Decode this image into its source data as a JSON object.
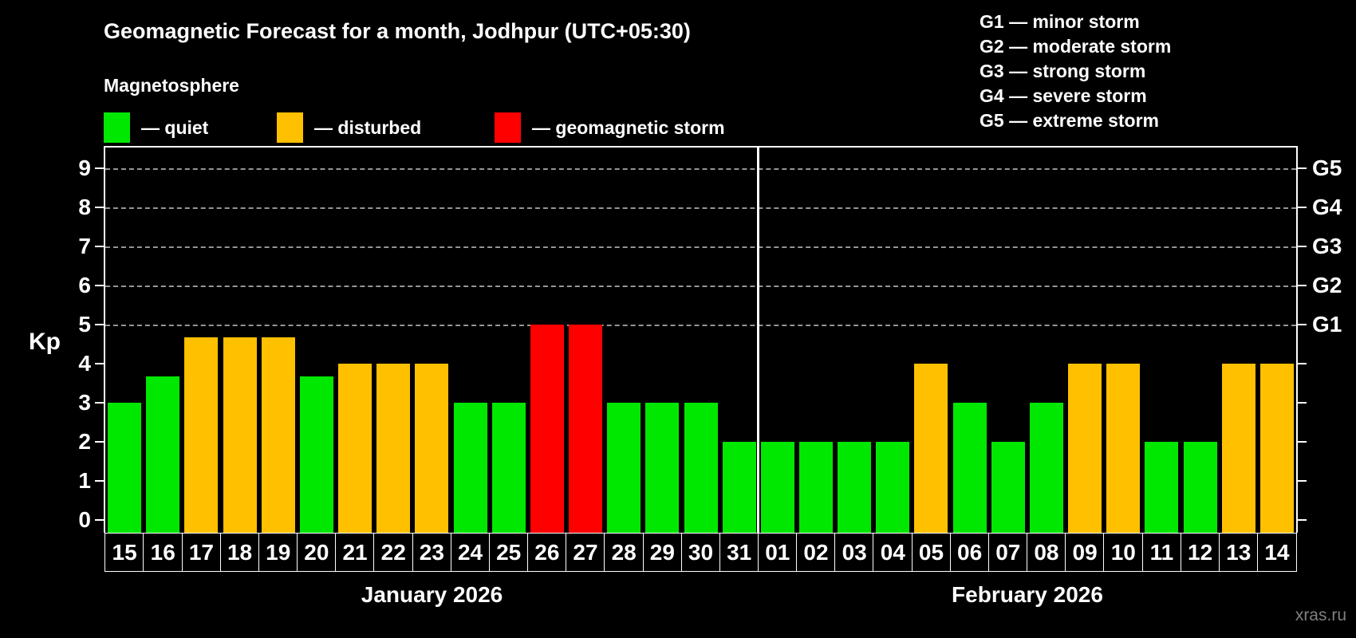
{
  "header": {
    "title": "Geomagnetic Forecast for a month, Jodhpur (UTC+05:30)",
    "subtitle": "Magnetosphere"
  },
  "legend": {
    "items": [
      {
        "label": "— quiet",
        "status": "quiet"
      },
      {
        "label": "— disturbed",
        "status": "disturbed"
      },
      {
        "label": "— geomagnetic storm",
        "status": "storm"
      }
    ]
  },
  "g_legend": {
    "items": [
      "G1 — minor storm",
      "G2 — moderate storm",
      "G3 — strong storm",
      "G4 — severe storm",
      "G5 — extreme storm"
    ]
  },
  "axes": {
    "y_label": "Kp",
    "y_ticks": [
      0,
      1,
      2,
      3,
      4,
      5,
      6,
      7,
      8,
      9
    ],
    "right_labels": [
      {
        "kp": 5,
        "label": "G1"
      },
      {
        "kp": 6,
        "label": "G2"
      },
      {
        "kp": 7,
        "label": "G3"
      },
      {
        "kp": 8,
        "label": "G4"
      },
      {
        "kp": 9,
        "label": "G5"
      }
    ]
  },
  "colors": {
    "quiet": "#00e800",
    "disturbed": "#ffc000",
    "storm": "#ff0000",
    "background": "#000000",
    "grid": "#b0b0b0",
    "text": "#ffffff",
    "watermark": "#808080"
  },
  "watermark": "xras.ru",
  "chart_data": {
    "type": "bar",
    "title": "Geomagnetic Forecast for a month, Jodhpur (UTC+05:30)",
    "xlabel": "",
    "ylabel": "Kp",
    "ylim": [
      0,
      9.5
    ],
    "gridlines_at": [
      5,
      6,
      7,
      8,
      9
    ],
    "legend_position": "top",
    "categories": [
      "15",
      "16",
      "17",
      "18",
      "19",
      "20",
      "21",
      "22",
      "23",
      "24",
      "25",
      "26",
      "27",
      "28",
      "29",
      "30",
      "31",
      "01",
      "02",
      "03",
      "04",
      "05",
      "06",
      "07",
      "08",
      "09",
      "10",
      "11",
      "12",
      "13",
      "14"
    ],
    "values": [
      3,
      3.67,
      4.67,
      4.67,
      4.67,
      3.67,
      4,
      4,
      4,
      3,
      3,
      5,
      5,
      3,
      3,
      3,
      2,
      2,
      2,
      2,
      2,
      4,
      3,
      2,
      3,
      4,
      4,
      2,
      2,
      4,
      4
    ],
    "statuses": [
      "quiet",
      "quiet",
      "disturbed",
      "disturbed",
      "disturbed",
      "quiet",
      "disturbed",
      "disturbed",
      "disturbed",
      "quiet",
      "quiet",
      "storm",
      "storm",
      "quiet",
      "quiet",
      "quiet",
      "quiet",
      "quiet",
      "quiet",
      "quiet",
      "quiet",
      "disturbed",
      "quiet",
      "quiet",
      "quiet",
      "disturbed",
      "disturbed",
      "quiet",
      "quiet",
      "disturbed",
      "disturbed"
    ],
    "months": [
      {
        "label": "January 2026",
        "days": 17
      },
      {
        "label": "February 2026",
        "days": 14
      }
    ]
  }
}
